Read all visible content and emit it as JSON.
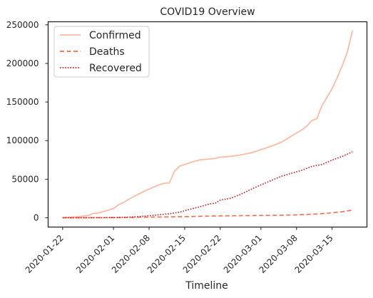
{
  "chart_data": {
    "type": "line",
    "title": "COVID19 Overview",
    "xlabel": "Timeline",
    "ylabel": "",
    "ylim": [
      -12000,
      254000
    ],
    "x_start": "2020-01-22",
    "x_end": "2020-03-19",
    "x_ticks": [
      "2020-01-22",
      "2020-02-01",
      "2020-02-08",
      "2020-02-15",
      "2020-02-22",
      "2020-03-01",
      "2020-03-08",
      "2020-03-15"
    ],
    "y_ticks": [
      0,
      50000,
      100000,
      150000,
      200000,
      250000
    ],
    "y_tick_labels": [
      "0",
      "50000",
      "100000",
      "150000",
      "200000",
      "250000"
    ],
    "legend_position": "top-left",
    "grid": false,
    "series": [
      {
        "name": "Confirmed",
        "style": "solid",
        "color": "#fcbba1",
        "points": [
          [
            "2020-01-22",
            555
          ],
          [
            "2020-01-23",
            653
          ],
          [
            "2020-01-24",
            941
          ],
          [
            "2020-01-25",
            1434
          ],
          [
            "2020-01-26",
            2118
          ],
          [
            "2020-01-27",
            2927
          ],
          [
            "2020-01-28",
            5578
          ],
          [
            "2020-01-29",
            6166
          ],
          [
            "2020-01-30",
            8234
          ],
          [
            "2020-01-31",
            9927
          ],
          [
            "2020-02-01",
            12038
          ],
          [
            "2020-02-02",
            16787
          ],
          [
            "2020-02-03",
            19881
          ],
          [
            "2020-02-04",
            23892
          ],
          [
            "2020-02-05",
            27635
          ],
          [
            "2020-02-06",
            30817
          ],
          [
            "2020-02-07",
            34391
          ],
          [
            "2020-02-08",
            37120
          ],
          [
            "2020-02-09",
            40150
          ],
          [
            "2020-02-10",
            42762
          ],
          [
            "2020-02-11",
            44802
          ],
          [
            "2020-02-12",
            45221
          ],
          [
            "2020-02-13",
            60368
          ],
          [
            "2020-02-14",
            66885
          ],
          [
            "2020-02-15",
            69030
          ],
          [
            "2020-02-16",
            71224
          ],
          [
            "2020-02-17",
            73258
          ],
          [
            "2020-02-18",
            75136
          ],
          [
            "2020-02-19",
            75639
          ],
          [
            "2020-02-20",
            76197
          ],
          [
            "2020-02-21",
            76823
          ],
          [
            "2020-02-22",
            78579
          ],
          [
            "2020-02-23",
            78965
          ],
          [
            "2020-02-24",
            79568
          ],
          [
            "2020-02-25",
            80413
          ],
          [
            "2020-02-26",
            81395
          ],
          [
            "2020-02-27",
            82754
          ],
          [
            "2020-02-28",
            84120
          ],
          [
            "2020-02-29",
            86011
          ],
          [
            "2020-03-01",
            88369
          ],
          [
            "2020-03-02",
            90306
          ],
          [
            "2020-03-03",
            92840
          ],
          [
            "2020-03-04",
            95120
          ],
          [
            "2020-03-05",
            97886
          ],
          [
            "2020-03-06",
            101801
          ],
          [
            "2020-03-07",
            105847
          ],
          [
            "2020-03-08",
            109821
          ],
          [
            "2020-03-09",
            113590
          ],
          [
            "2020-03-10",
            118620
          ],
          [
            "2020-03-11",
            125875
          ],
          [
            "2020-03-12",
            128352
          ],
          [
            "2020-03-13",
            145205
          ],
          [
            "2020-03-14",
            156101
          ],
          [
            "2020-03-15",
            167454
          ],
          [
            "2020-03-16",
            181574
          ],
          [
            "2020-03-17",
            197102
          ],
          [
            "2020-03-18",
            214821
          ],
          [
            "2020-03-19",
            242570
          ]
        ]
      },
      {
        "name": "Deaths",
        "style": "dashed",
        "color": "#fb6a4a",
        "points": [
          [
            "2020-01-22",
            17
          ],
          [
            "2020-01-27",
            82
          ],
          [
            "2020-02-01",
            259
          ],
          [
            "2020-02-05",
            564
          ],
          [
            "2020-02-10",
            1013
          ],
          [
            "2020-02-15",
            1526
          ],
          [
            "2020-02-20",
            2247
          ],
          [
            "2020-02-25",
            2708
          ],
          [
            "2020-03-01",
            2996
          ],
          [
            "2020-03-05",
            3348
          ],
          [
            "2020-03-08",
            3808
          ],
          [
            "2020-03-11",
            4615
          ],
          [
            "2020-03-13",
            5404
          ],
          [
            "2020-03-15",
            6440
          ],
          [
            "2020-03-17",
            7905
          ],
          [
            "2020-03-19",
            9867
          ]
        ]
      },
      {
        "name": "Recovered",
        "style": "dotted",
        "color": "#cb181d",
        "points": [
          [
            "2020-01-22",
            28
          ],
          [
            "2020-01-27",
            61
          ],
          [
            "2020-02-01",
            284
          ],
          [
            "2020-02-03",
            624
          ],
          [
            "2020-02-05",
            1124
          ],
          [
            "2020-02-07",
            2011
          ],
          [
            "2020-02-09",
            3244
          ],
          [
            "2020-02-11",
            4683
          ],
          [
            "2020-02-12",
            5150
          ],
          [
            "2020-02-14",
            7373
          ],
          [
            "2020-02-16",
            10865
          ],
          [
            "2020-02-18",
            14352
          ],
          [
            "2020-02-20",
            18177
          ],
          [
            "2020-02-21",
            18890
          ],
          [
            "2020-02-22",
            22886
          ],
          [
            "2020-02-24",
            25227
          ],
          [
            "2020-02-26",
            30384
          ],
          [
            "2020-02-28",
            36711
          ],
          [
            "2020-03-01",
            42716
          ],
          [
            "2020-03-03",
            48229
          ],
          [
            "2020-03-05",
            53796
          ],
          [
            "2020-03-07",
            57611
          ],
          [
            "2020-03-09",
            61479
          ],
          [
            "2020-03-11",
            66581
          ],
          [
            "2020-03-13",
            69000
          ],
          [
            "2020-03-15",
            74800
          ],
          [
            "2020-03-17",
            79500
          ],
          [
            "2020-03-19",
            85500
          ]
        ]
      }
    ]
  }
}
